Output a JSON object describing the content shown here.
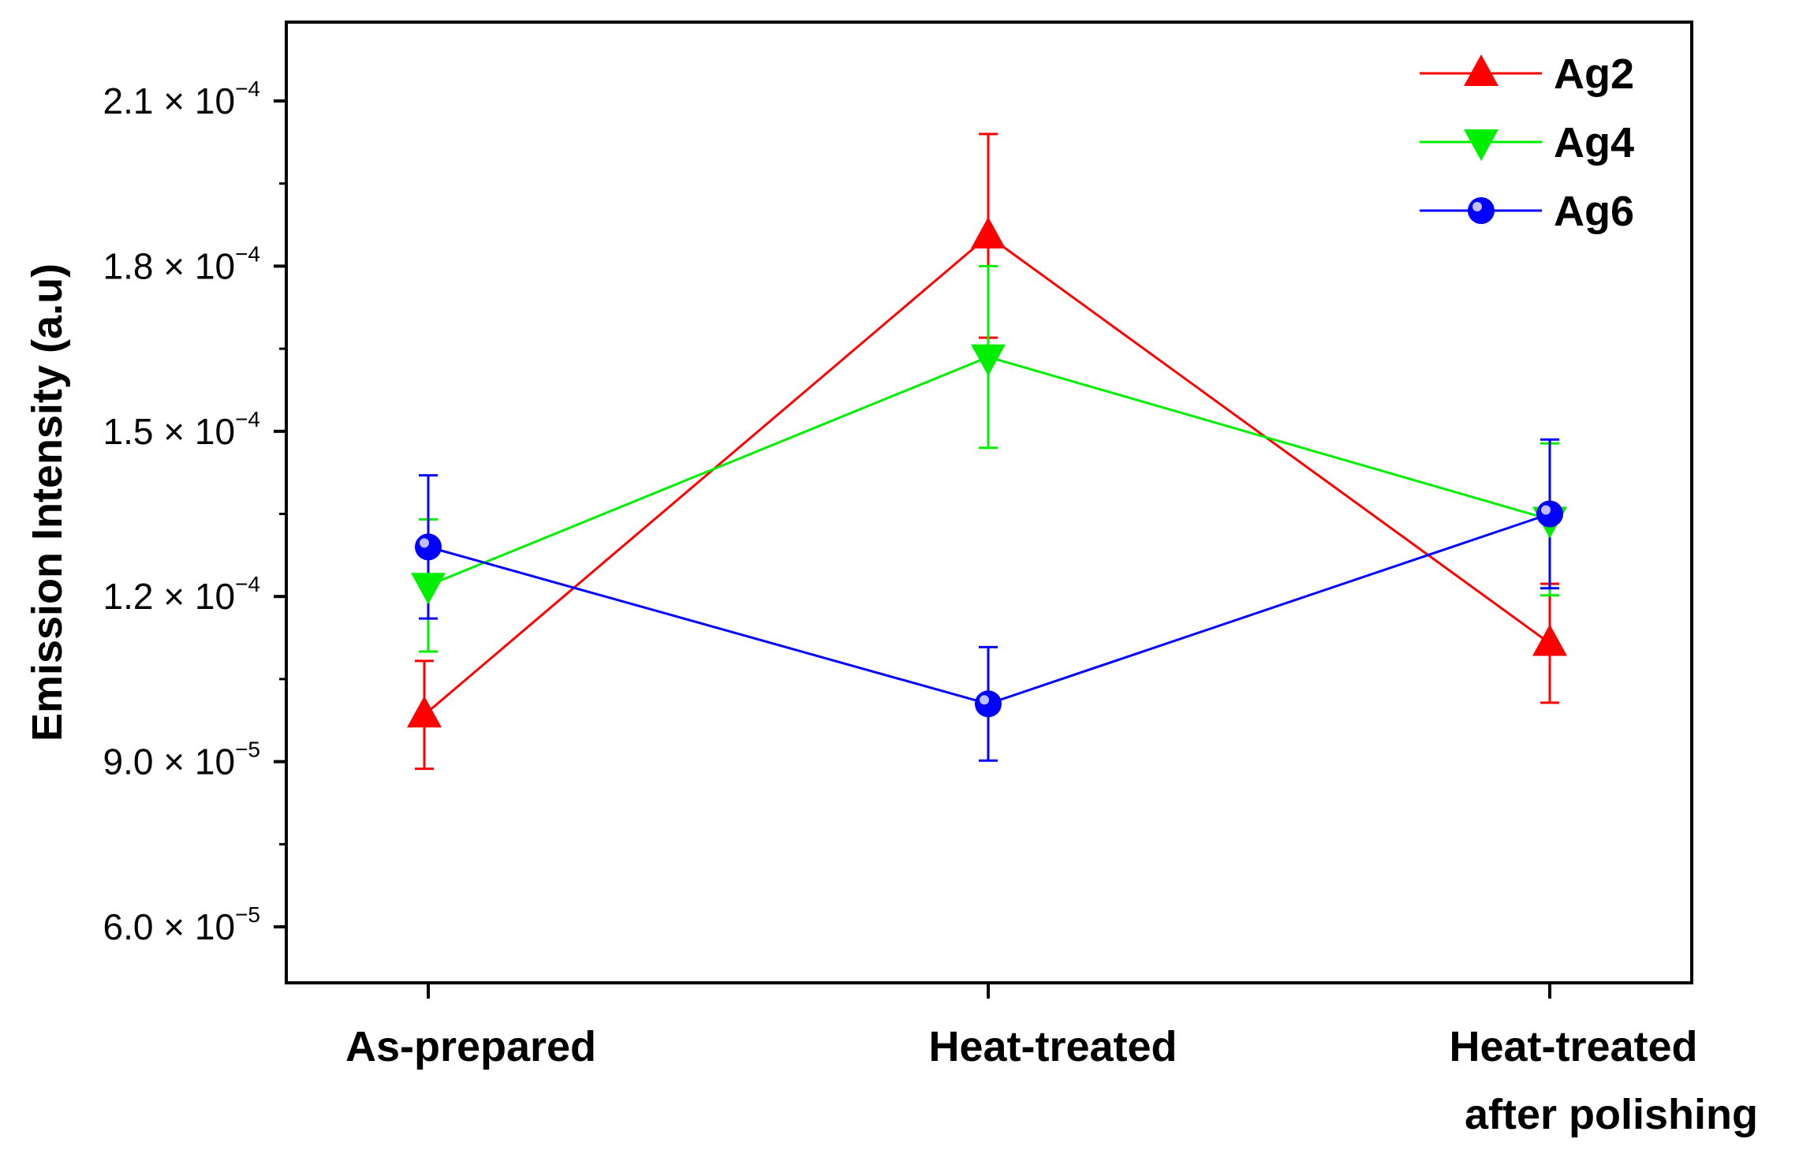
{
  "chart_data": {
    "type": "line",
    "title": "",
    "xlabel": "",
    "ylabel": "Emission Intensity (a.u)",
    "categories": [
      [
        "As-prepared"
      ],
      [
        "Heat-treated"
      ],
      [
        "Heat-treated",
        "after polishing"
      ]
    ],
    "ylim": [
      5e-05,
      0.000225
    ],
    "yticks": [
      {
        "value": 6e-05,
        "mantissa": "6.0",
        "exponent": "−5"
      },
      {
        "value": 9e-05,
        "mantissa": "9.0",
        "exponent": "−5"
      },
      {
        "value": 0.00012,
        "mantissa": "1.2",
        "exponent": "−4"
      },
      {
        "value": 0.00015,
        "mantissa": "1.5",
        "exponent": "−4"
      },
      {
        "value": 0.00018,
        "mantissa": "1.8",
        "exponent": "−4"
      },
      {
        "value": 0.00021,
        "mantissa": "2.1",
        "exponent": "−4"
      }
    ],
    "tick_multiplier": "× 10",
    "grid": false,
    "legend_position": "top-right",
    "series": [
      {
        "name": "Ag2",
        "color": "#ff0000",
        "marker": "triangle-up",
        "values": [
          9.85e-05,
          0.0001855,
          0.0001115
        ],
        "errors": [
          9.8e-06,
          1.85e-05,
          1.08e-05
        ]
      },
      {
        "name": "Ag4",
        "color": "#00ee00",
        "marker": "triangle-down",
        "values": [
          0.000122,
          0.0001635,
          0.000134
        ],
        "errors": [
          1.2e-05,
          1.65e-05,
          1.38e-05
        ]
      },
      {
        "name": "Ag6",
        "color": "#0000ff",
        "marker": "circle",
        "values": [
          0.000129,
          0.0001005,
          0.000135
        ],
        "errors": [
          1.3e-05,
          1.03e-05,
          1.35e-05
        ]
      }
    ]
  }
}
